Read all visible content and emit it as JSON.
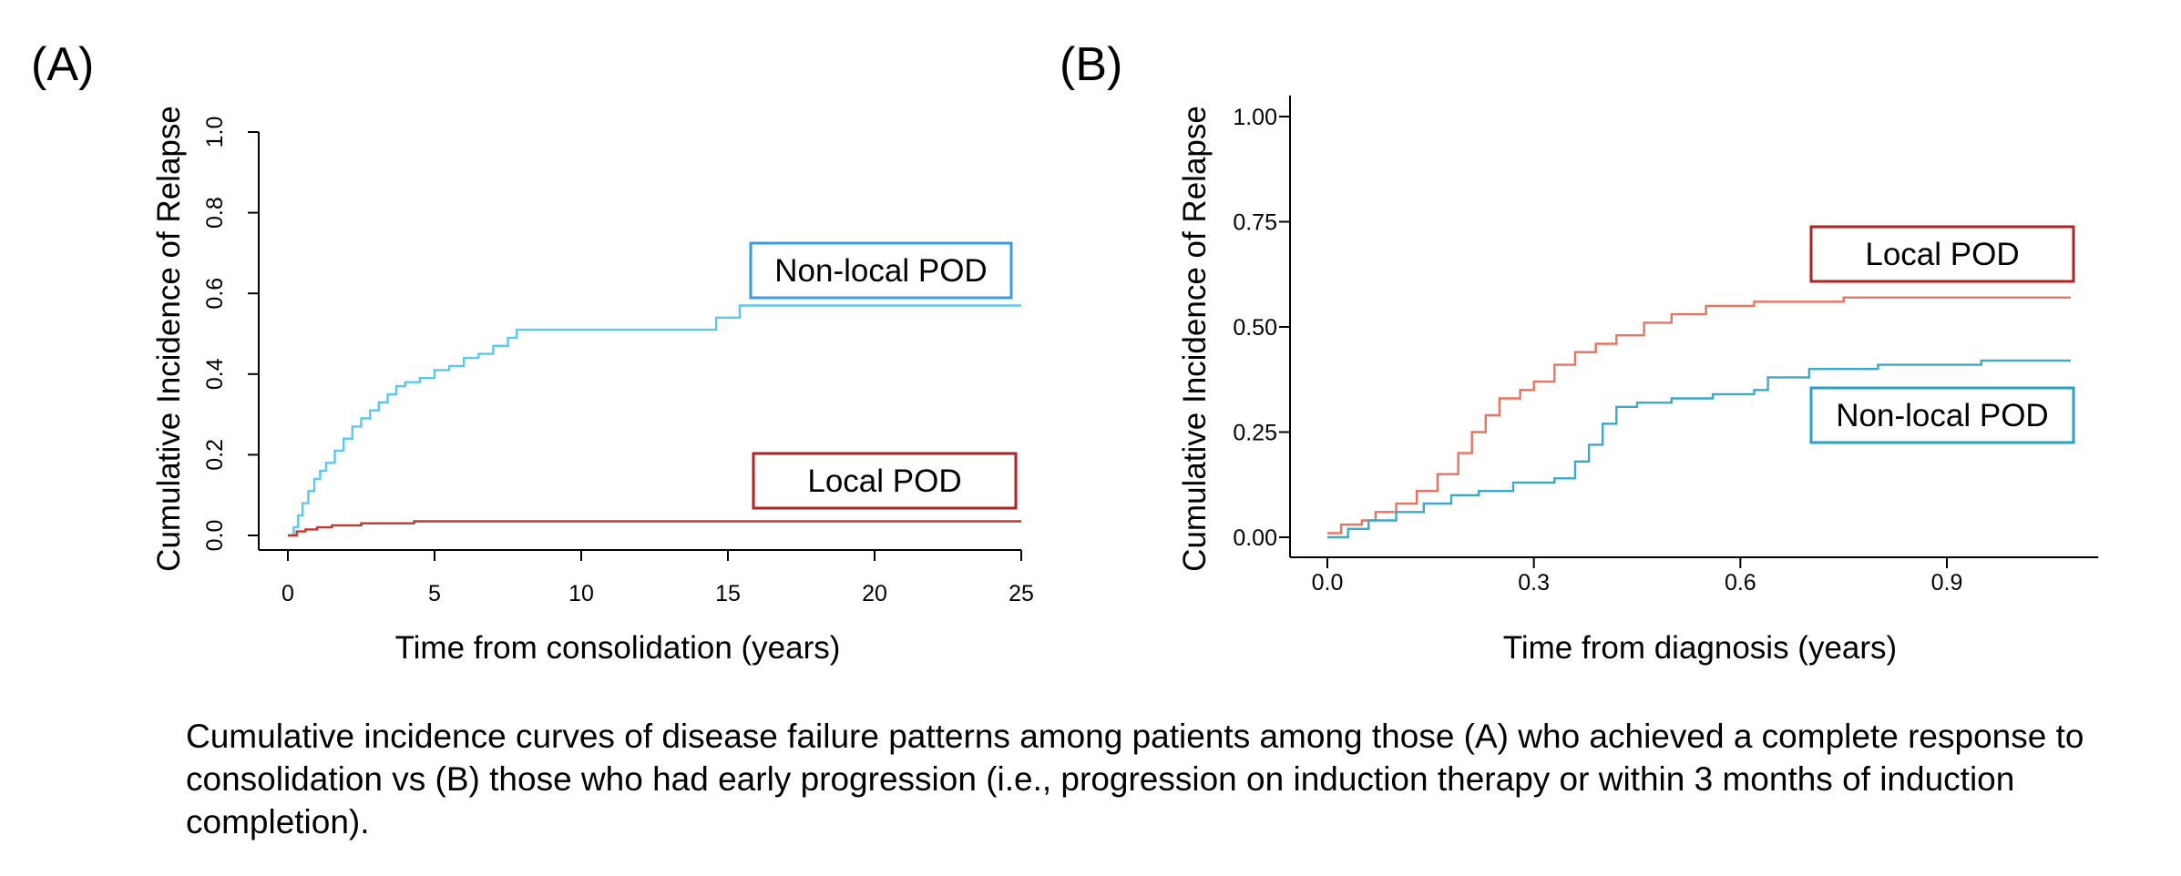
{
  "panels": [
    {
      "letter": "(A)",
      "ylabel": "Cumulative Incidence of Relapse",
      "xlabel": "Time from consolidation (years)",
      "xticks": [
        "0",
        "5",
        "10",
        "15",
        "20",
        "25"
      ],
      "yticks": [
        "0.0",
        "0.2",
        "0.4",
        "0.6",
        "0.8",
        "1.0"
      ],
      "legend": [
        {
          "label": "Non-local POD",
          "color": "#3b9be0"
        },
        {
          "label": "Local POD",
          "color": "#b22222"
        }
      ]
    },
    {
      "letter": "(B)",
      "ylabel": "Cumulative Incidence of Relapse",
      "xlabel": "Time from diagnosis (years)",
      "xticks": [
        "0.0",
        "0.3",
        "0.6",
        "0.9"
      ],
      "yticks": [
        "0.00",
        "0.25",
        "0.50",
        "0.75",
        "1.00"
      ],
      "legend": [
        {
          "label": "Local POD",
          "color": "#b22222"
        },
        {
          "label": "Non-local POD",
          "color": "#2aa0c9"
        }
      ]
    }
  ],
  "caption": "Cumulative incidence curves of disease failure patterns among patients among those (A) who achieved a complete response to consolidation vs (B) those who had early progression (i.e., progression on induction therapy or within 3 months of induction completion).",
  "chart_data": [
    {
      "type": "line",
      "step": true,
      "xlabel": "Time from consolidation (years)",
      "ylabel": "Cumulative Incidence of Relapse",
      "xlim": [
        0,
        25
      ],
      "ylim": [
        0,
        1
      ],
      "xticks": [
        0,
        5,
        10,
        15,
        20,
        25
      ],
      "yticks": [
        0.0,
        0.2,
        0.4,
        0.6,
        0.8,
        1.0
      ],
      "grid": false,
      "legend_placement": "inline labels",
      "series": [
        {
          "name": "Non-local POD",
          "color": "#5bc8f0",
          "x": [
            0,
            0.2,
            0.35,
            0.5,
            0.7,
            0.9,
            1.1,
            1.3,
            1.6,
            1.9,
            2.2,
            2.5,
            2.8,
            3.1,
            3.4,
            3.7,
            4.0,
            4.5,
            5.0,
            5.5,
            6.0,
            6.5,
            7.0,
            7.5,
            7.8,
            9.0,
            11.0,
            13.0,
            14.6,
            15.0,
            15.4,
            17.0,
            20.0,
            23.0,
            25.0
          ],
          "y": [
            0.0,
            0.02,
            0.05,
            0.08,
            0.11,
            0.14,
            0.16,
            0.18,
            0.21,
            0.24,
            0.27,
            0.29,
            0.31,
            0.33,
            0.35,
            0.37,
            0.38,
            0.39,
            0.41,
            0.42,
            0.44,
            0.45,
            0.47,
            0.49,
            0.51,
            0.51,
            0.51,
            0.51,
            0.54,
            0.54,
            0.57,
            0.57,
            0.57,
            0.57,
            0.57
          ]
        },
        {
          "name": "Local POD",
          "color": "#c0392b",
          "x": [
            0,
            0.3,
            0.6,
            1.0,
            1.5,
            2.5,
            4.3,
            8.0,
            15.0,
            20.0,
            25.0
          ],
          "y": [
            0.0,
            0.01,
            0.015,
            0.02,
            0.025,
            0.03,
            0.035,
            0.035,
            0.035,
            0.035,
            0.035
          ]
        }
      ]
    },
    {
      "type": "line",
      "step": true,
      "xlabel": "Time from diagnosis (years)",
      "ylabel": "Cumulative Incidence of Relapse",
      "xlim": [
        -0.05,
        1.12
      ],
      "ylim": [
        -0.05,
        1.05
      ],
      "xticks": [
        0.0,
        0.3,
        0.6,
        0.9
      ],
      "yticks": [
        0.0,
        0.25,
        0.5,
        0.75,
        1.0
      ],
      "grid": false,
      "legend_placement": "inline labels",
      "series": [
        {
          "name": "Local POD",
          "color": "#e8735f",
          "x": [
            0,
            0.02,
            0.05,
            0.07,
            0.1,
            0.13,
            0.16,
            0.19,
            0.21,
            0.23,
            0.25,
            0.28,
            0.3,
            0.33,
            0.36,
            0.39,
            0.42,
            0.46,
            0.5,
            0.55,
            0.62,
            0.75,
            0.9,
            1.08
          ],
          "y": [
            0.01,
            0.03,
            0.04,
            0.06,
            0.08,
            0.11,
            0.15,
            0.2,
            0.25,
            0.29,
            0.33,
            0.35,
            0.37,
            0.41,
            0.44,
            0.46,
            0.48,
            0.51,
            0.53,
            0.55,
            0.56,
            0.57,
            0.57,
            0.57
          ]
        },
        {
          "name": "Non-local POD",
          "color": "#3ba9c9",
          "x": [
            0,
            0.03,
            0.06,
            0.1,
            0.14,
            0.18,
            0.22,
            0.27,
            0.33,
            0.36,
            0.38,
            0.4,
            0.42,
            0.45,
            0.5,
            0.56,
            0.62,
            0.64,
            0.7,
            0.8,
            0.95,
            1.08
          ],
          "y": [
            0.0,
            0.02,
            0.04,
            0.06,
            0.08,
            0.1,
            0.11,
            0.13,
            0.14,
            0.18,
            0.22,
            0.27,
            0.31,
            0.32,
            0.33,
            0.34,
            0.35,
            0.38,
            0.4,
            0.41,
            0.42,
            0.42
          ]
        }
      ]
    }
  ]
}
